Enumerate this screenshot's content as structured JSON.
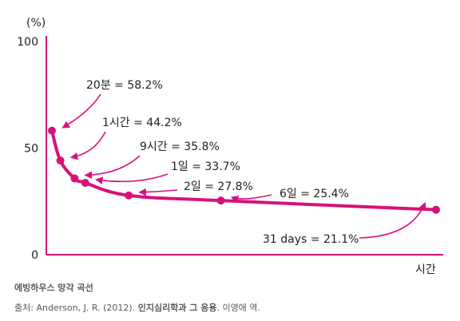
{
  "chart_data": {
    "type": "line",
    "y_unit_label": "(%)",
    "xlabel": "시간",
    "ylim": [
      0,
      100
    ],
    "yticks": [
      0,
      50,
      100
    ],
    "grid": false,
    "series": [
      {
        "points": [
          {
            "x_pos": 0.0,
            "y": 58.2,
            "label": "20분 = 58.2%"
          },
          {
            "x_pos": 0.022,
            "y": 44.2,
            "label": "1시간 = 44.2%"
          },
          {
            "x_pos": 0.059,
            "y": 35.8,
            "label": "9시간 = 35.8%"
          },
          {
            "x_pos": 0.087,
            "y": 33.7,
            "label": "1일 = 33.7%"
          },
          {
            "x_pos": 0.2,
            "y": 27.8,
            "label": "2일 = 27.8%"
          },
          {
            "x_pos": 0.44,
            "y": 25.4,
            "label": "6일 = 25.4%"
          },
          {
            "x_pos": 1.0,
            "y": 21.1,
            "label": "31 days = 21.1%"
          }
        ]
      }
    ],
    "color": "#d6127a"
  },
  "caption": {
    "title": "에빙하우스 망각 곡선",
    "source_prefix": "출처: Anderson, J. R. (2012). ",
    "source_book": "인지심리학과 그 응용",
    "source_suffix": ". 이영애 역."
  }
}
